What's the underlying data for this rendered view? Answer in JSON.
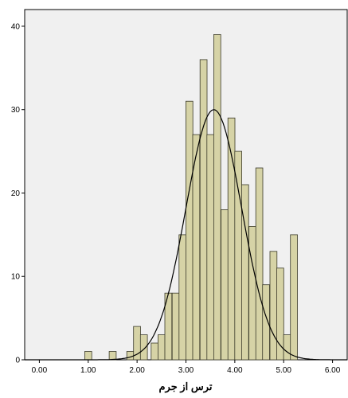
{
  "chart_data": {
    "type": "bar",
    "subtype": "histogram",
    "xlabel": "ترس از جرم",
    "ylabel": "",
    "title": "",
    "xlim": [
      -0.3,
      6.3
    ],
    "ylim": [
      0,
      42
    ],
    "xticks": [
      0,
      1,
      2,
      3,
      4,
      5,
      6
    ],
    "xtick_labels": [
      "0.00",
      "1.00",
      "2.00",
      "3.00",
      "4.00",
      "5.00",
      "6.00"
    ],
    "yticks": [
      0,
      10,
      20,
      30,
      40
    ],
    "ytick_labels": [
      "0",
      "10",
      "20",
      "30",
      "40"
    ],
    "bin_width": 0.143,
    "bins": [
      {
        "x": 1.0,
        "count": 1
      },
      {
        "x": 1.5,
        "count": 1
      },
      {
        "x": 1.86,
        "count": 1
      },
      {
        "x": 2.0,
        "count": 4
      },
      {
        "x": 2.14,
        "count": 3
      },
      {
        "x": 2.36,
        "count": 2
      },
      {
        "x": 2.5,
        "count": 3
      },
      {
        "x": 2.64,
        "count": 8
      },
      {
        "x": 2.79,
        "count": 8
      },
      {
        "x": 2.93,
        "count": 15
      },
      {
        "x": 3.07,
        "count": 31
      },
      {
        "x": 3.21,
        "count": 27
      },
      {
        "x": 3.36,
        "count": 36
      },
      {
        "x": 3.5,
        "count": 27
      },
      {
        "x": 3.64,
        "count": 39
      },
      {
        "x": 3.79,
        "count": 18
      },
      {
        "x": 3.93,
        "count": 29
      },
      {
        "x": 4.07,
        "count": 25
      },
      {
        "x": 4.21,
        "count": 21
      },
      {
        "x": 4.36,
        "count": 16
      },
      {
        "x": 4.5,
        "count": 23
      },
      {
        "x": 4.64,
        "count": 9
      },
      {
        "x": 4.79,
        "count": 13
      },
      {
        "x": 4.93,
        "count": 11
      },
      {
        "x": 5.07,
        "count": 3
      },
      {
        "x": 5.21,
        "count": 15
      }
    ],
    "normal_curve": {
      "mean": 3.57,
      "std": 0.57,
      "peak": 30
    },
    "grid": false,
    "colors": {
      "bar_fill": "#d6d3a6",
      "bar_stroke": "#3a3a2a",
      "plot_bg": "#f0f0f0",
      "curve": "#000000"
    }
  }
}
